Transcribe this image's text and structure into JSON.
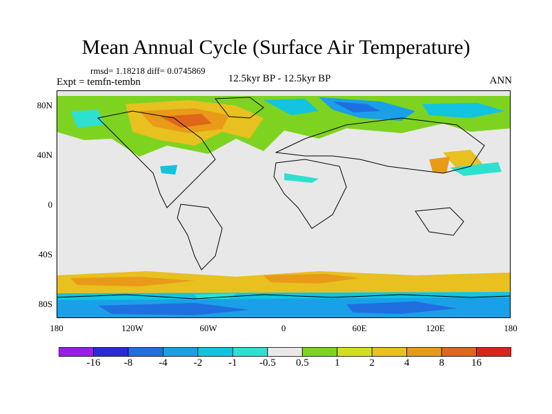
{
  "title": "Mean Annual Cycle (Surface Air Temperature)",
  "stats": "rmsd= 1.18218 diff= 0.0745869",
  "experiment": "Expt = temfn-tembn",
  "period": "12.5kyr BP - 12.5kyr BP",
  "season": "ANN",
  "lat_ticks": [
    "80N",
    "40N",
    "0",
    "40S",
    "80S"
  ],
  "lon_ticks": [
    "180",
    "120W",
    "60W",
    "0",
    "60E",
    "120E",
    "180"
  ],
  "colorbar": {
    "labels": [
      "-16",
      "-8",
      "-4",
      "-2",
      "-1",
      "-0.5",
      "0.5",
      "1",
      "2",
      "4",
      "8",
      "16"
    ],
    "colors": [
      "#9a1ee8",
      "#2b2bd6",
      "#1f6fe0",
      "#1aa0e8",
      "#12c4e0",
      "#2ee0d0",
      "#e8e8e8",
      "#7ed320",
      "#d0e020",
      "#e8c020",
      "#e89a18",
      "#e0661a",
      "#d8261a"
    ]
  }
}
